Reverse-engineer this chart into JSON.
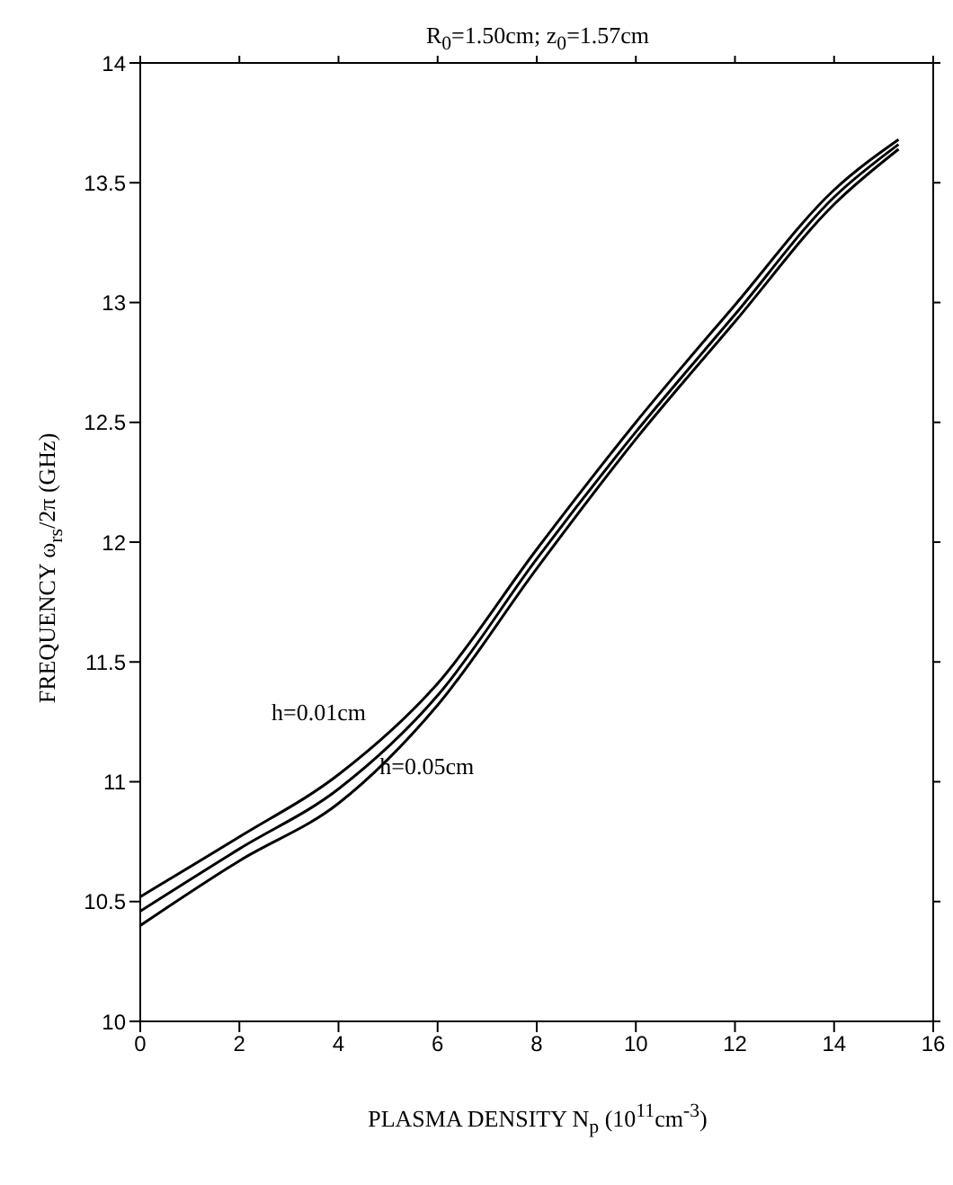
{
  "chart_data": {
    "type": "line",
    "title": "R$_{0}$=1.50cm; z$_{0}$=1.57cm",
    "xlabel": "PLASMA DENSITY N$_{p}$ (10$^{11}$cm$^{-3}$)",
    "ylabel": "FREQUENCY   ω$_{rs}$/2π   (GHz)",
    "x": [
      0,
      2,
      4,
      6,
      8,
      10,
      12,
      14,
      15.3
    ],
    "series": [
      {
        "name": "h=0.01cm",
        "color": "#000000",
        "values": [
          10.52,
          10.77,
          11.03,
          11.41,
          11.97,
          12.5,
          12.99,
          13.47,
          13.68
        ]
      },
      {
        "color": "#000000",
        "values": [
          10.46,
          10.72,
          10.97,
          11.36,
          11.93,
          12.46,
          12.95,
          13.44,
          13.66
        ]
      },
      {
        "name": "h=0.05cm",
        "color": "#000000",
        "values": [
          10.4,
          10.67,
          10.91,
          11.32,
          11.89,
          12.43,
          12.92,
          13.41,
          13.64
        ]
      }
    ],
    "xlim": [
      0,
      16
    ],
    "xticks": [
      0,
      2,
      4,
      6,
      8,
      10,
      12,
      14,
      16
    ],
    "ylim": [
      10,
      14
    ],
    "yticks": [
      10,
      10.5,
      11,
      11.5,
      12,
      12.5,
      13,
      13.5,
      14
    ],
    "legend": false,
    "marker": "none",
    "line_style": "solid"
  }
}
